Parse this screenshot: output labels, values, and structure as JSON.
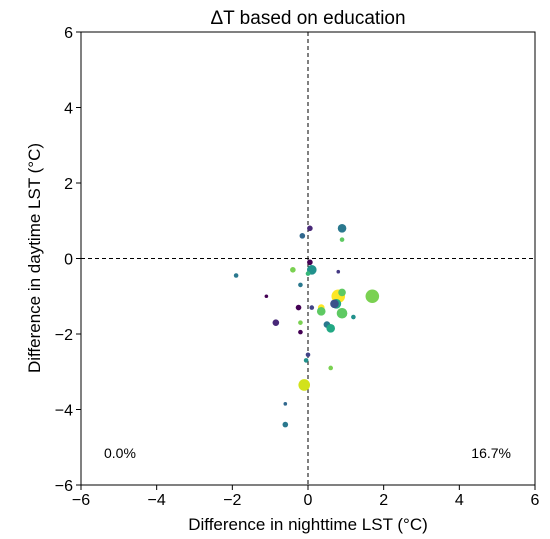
{
  "chart_data": {
    "type": "scatter",
    "title": "ΔT based on education",
    "xlabel": "Difference in nighttime LST (°C)",
    "ylabel": "Difference in daytime LST (°C)",
    "xlim": [
      -6,
      6
    ],
    "ylim": [
      -6,
      6
    ],
    "xticks": [
      "−6",
      "−4",
      "−2",
      "0",
      "2",
      "4",
      "6"
    ],
    "yticks": [
      "−6",
      "−4",
      "−2",
      "0",
      "2",
      "4",
      "6"
    ],
    "reference_lines": [
      "x = 0 (dashed)",
      "y = 0 (dashed)"
    ],
    "quadrant_annotations": {
      "bottom_left": "0.0%",
      "bottom_right": "16.7%"
    },
    "grid": false,
    "colormap": "viridis",
    "points": [
      {
        "x": 0.9,
        "y": 0.8,
        "size": 7,
        "color": "#2a788e"
      },
      {
        "x": 0.05,
        "y": 0.8,
        "size": 4,
        "color": "#482878"
      },
      {
        "x": -0.15,
        "y": 0.6,
        "size": 4,
        "color": "#31688e"
      },
      {
        "x": 0.9,
        "y": 0.5,
        "size": 3,
        "color": "#5ec962"
      },
      {
        "x": 0.05,
        "y": -0.1,
        "size": 4,
        "color": "#440154"
      },
      {
        "x": 0.1,
        "y": -0.3,
        "size": 8,
        "color": "#21918c"
      },
      {
        "x": -0.4,
        "y": -0.3,
        "size": 4,
        "color": "#7ad151"
      },
      {
        "x": 0.0,
        "y": -0.4,
        "size": 3,
        "color": "#35b779"
      },
      {
        "x": 0.8,
        "y": -0.35,
        "size": 2,
        "color": "#443983"
      },
      {
        "x": -1.9,
        "y": -0.45,
        "size": 3,
        "color": "#2a788e"
      },
      {
        "x": -0.2,
        "y": -0.7,
        "size": 3,
        "color": "#2a788e"
      },
      {
        "x": -1.1,
        "y": -1.0,
        "size": 2,
        "color": "#440154"
      },
      {
        "x": 1.7,
        "y": -1.0,
        "size": 12,
        "color": "#7ad151"
      },
      {
        "x": 0.8,
        "y": -1.0,
        "size": 12,
        "color": "#fde725"
      },
      {
        "x": 0.9,
        "y": -0.9,
        "size": 6,
        "color": "#5ec962"
      },
      {
        "x": 0.75,
        "y": -1.2,
        "size": 8,
        "color": "#22a884"
      },
      {
        "x": 0.7,
        "y": -1.2,
        "size": 7,
        "color": "#3b528b"
      },
      {
        "x": -0.25,
        "y": -1.3,
        "size": 4,
        "color": "#440154"
      },
      {
        "x": 0.1,
        "y": -1.3,
        "size": 3,
        "color": "#414487"
      },
      {
        "x": 0.35,
        "y": -1.3,
        "size": 5,
        "color": "#fde725"
      },
      {
        "x": 0.35,
        "y": -1.4,
        "size": 7,
        "color": "#5ec962"
      },
      {
        "x": 0.9,
        "y": -1.45,
        "size": 9,
        "color": "#5ec962"
      },
      {
        "x": 1.2,
        "y": -1.55,
        "size": 3,
        "color": "#21918c"
      },
      {
        "x": -0.2,
        "y": -1.7,
        "size": 3,
        "color": "#7ad151"
      },
      {
        "x": -0.85,
        "y": -1.7,
        "size": 5,
        "color": "#482878"
      },
      {
        "x": 0.5,
        "y": -1.75,
        "size": 5,
        "color": "#2a788e"
      },
      {
        "x": 0.6,
        "y": -1.85,
        "size": 7,
        "color": "#22a884"
      },
      {
        "x": -0.2,
        "y": -1.95,
        "size": 3,
        "color": "#440154"
      },
      {
        "x": 0.0,
        "y": -2.55,
        "size": 3,
        "color": "#414487"
      },
      {
        "x": -0.05,
        "y": -2.7,
        "size": 3,
        "color": "#21918c"
      },
      {
        "x": 0.6,
        "y": -2.9,
        "size": 3,
        "color": "#7ad151"
      },
      {
        "x": -0.1,
        "y": -3.35,
        "size": 10,
        "color": "#d2e21b"
      },
      {
        "x": -0.6,
        "y": -3.85,
        "size": 2,
        "color": "#31688e"
      },
      {
        "x": -0.6,
        "y": -4.4,
        "size": 4,
        "color": "#2a788e"
      }
    ]
  }
}
